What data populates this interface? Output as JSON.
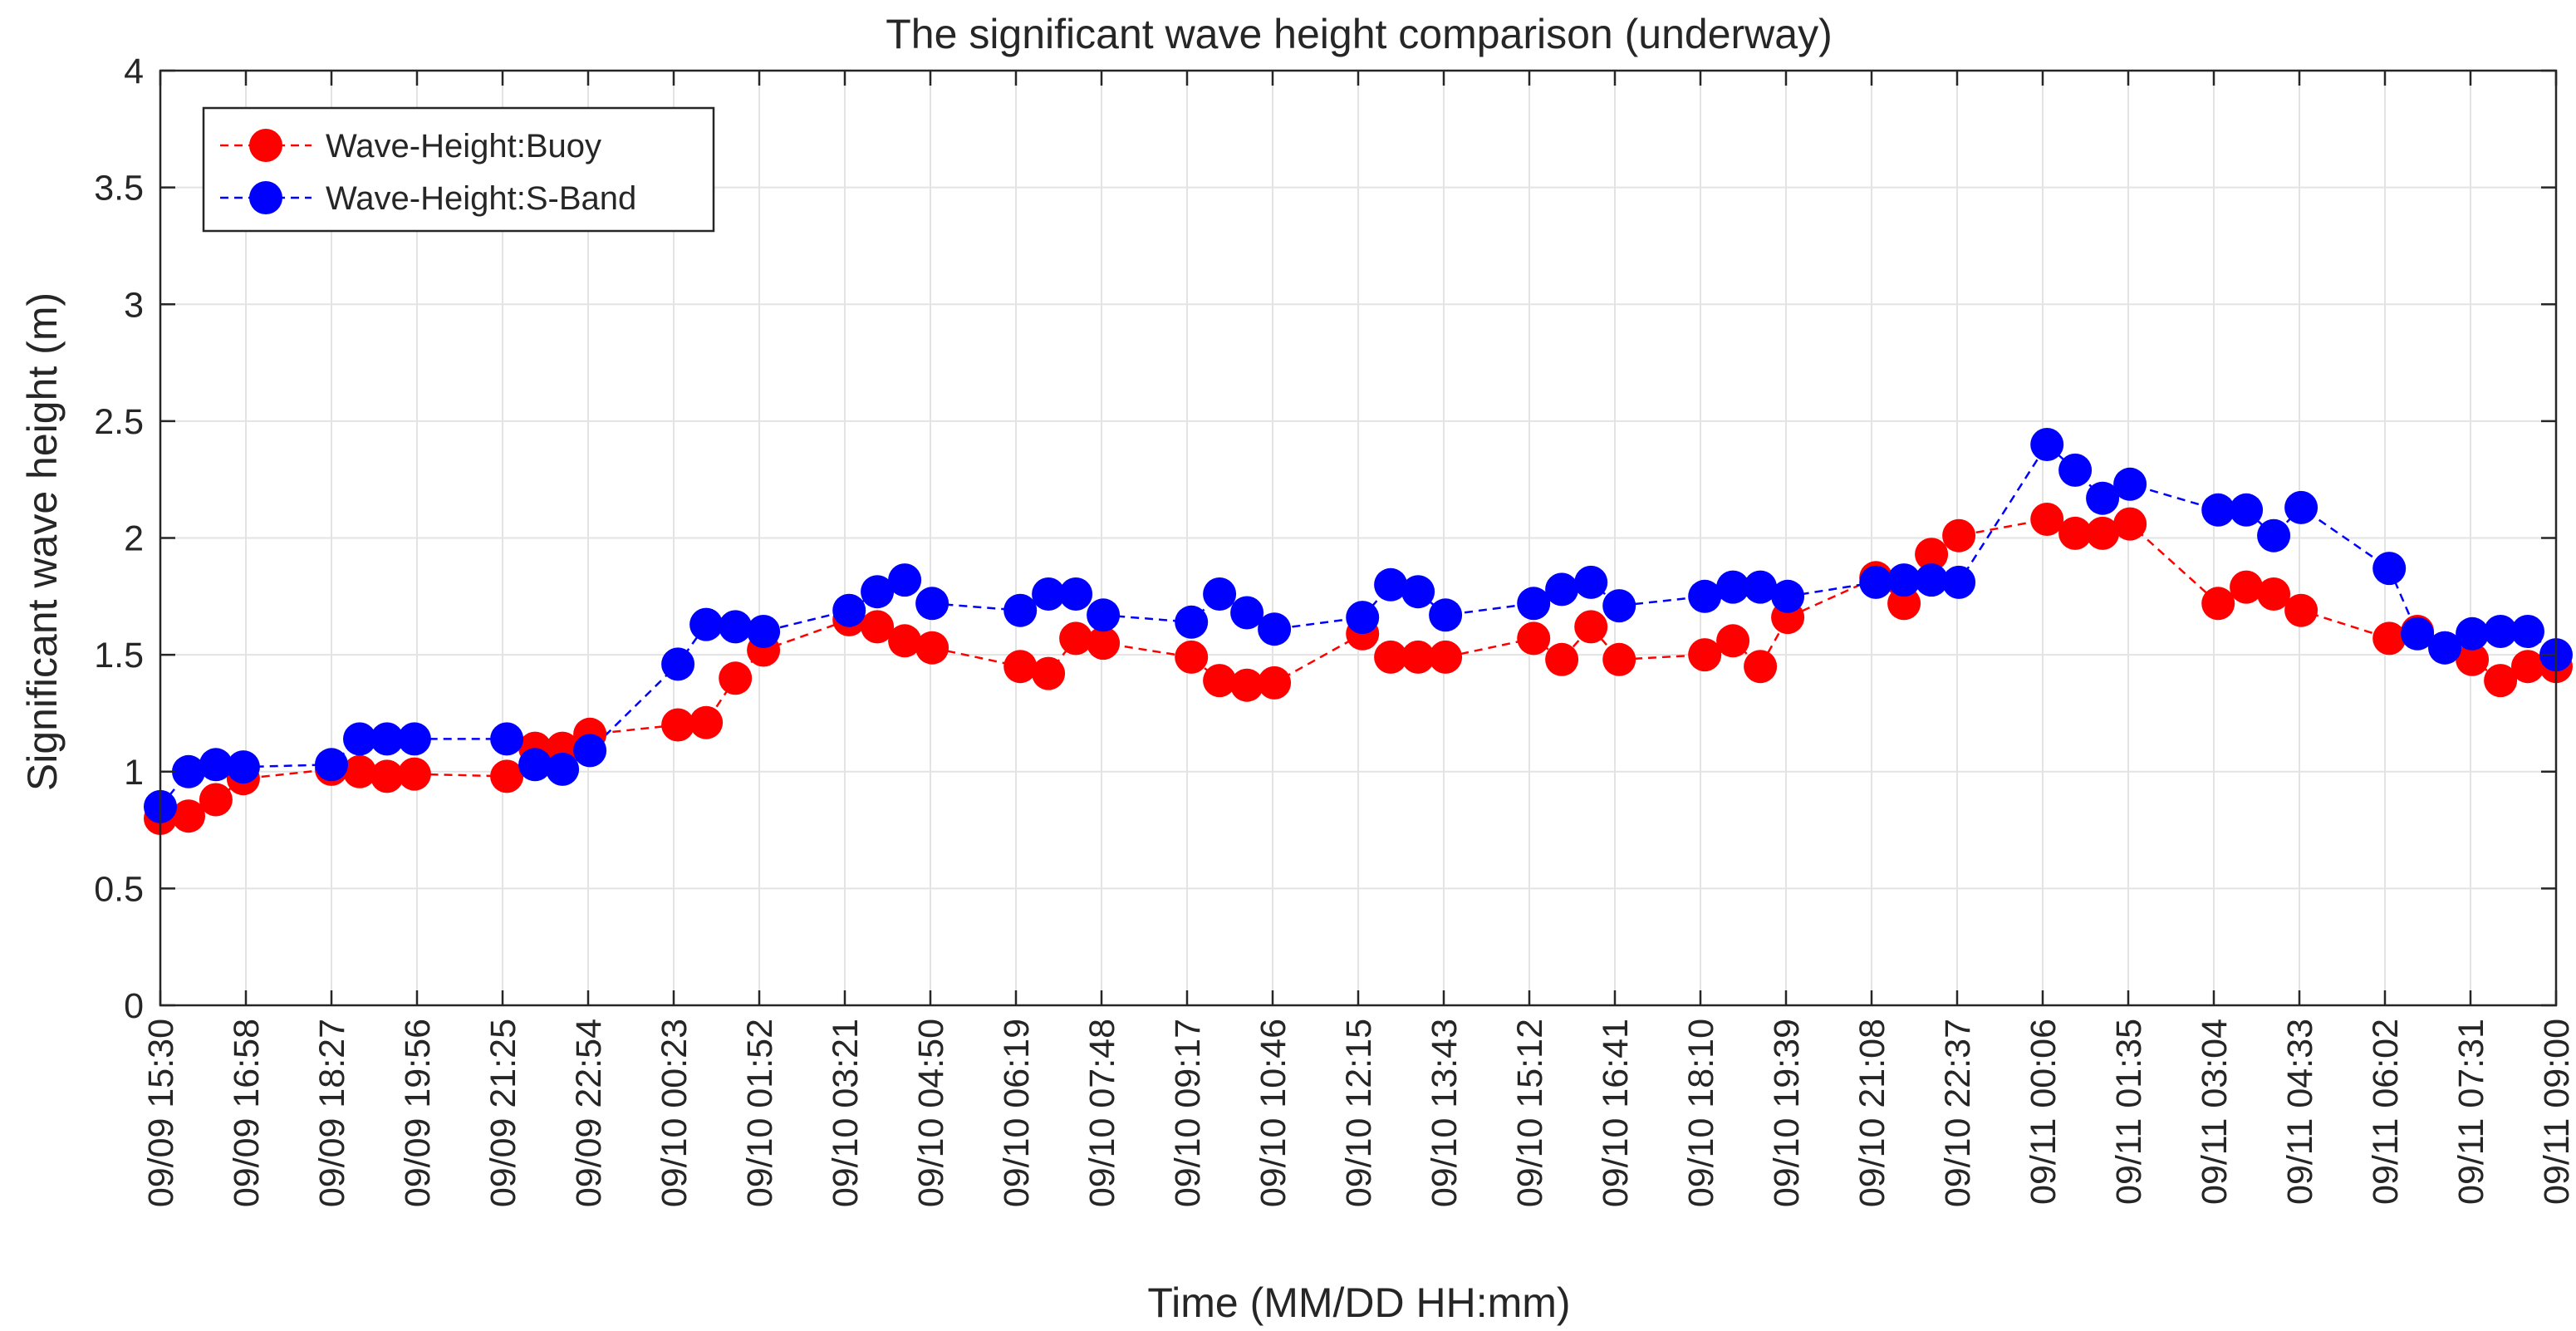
{
  "chart_data": {
    "type": "line",
    "title": "The significant wave height comparison (underway)",
    "xlabel": "Time (MM/DD HH:mm)",
    "ylabel": "Significant wave height (m)",
    "ylim": [
      0,
      4
    ],
    "yticks": [
      "0",
      "0.5",
      "1",
      "1.5",
      "2",
      "2.5",
      "3",
      "3.5",
      "4"
    ],
    "xticks": [
      "09/09 15:30",
      "09/09 16:58",
      "09/09 18:27",
      "09/09 19:56",
      "09/09 21:25",
      "09/09 22:54",
      "09/10 00:23",
      "09/10 01:52",
      "09/10 03:21",
      "09/10 04:50",
      "09/10 06:19",
      "09/10 07:48",
      "09/10 09:17",
      "09/10 10:46",
      "09/10 12:15",
      "09/10 13:43",
      "09/10 15:12",
      "09/10 16:41",
      "09/10 18:10",
      "09/10 19:39",
      "09/10 21:08",
      "09/10 22:37",
      "09/11 00:06",
      "09/11 01:35",
      "09/11 03:04",
      "09/11 04:33",
      "09/11 06:02",
      "09/11 07:31",
      "09/11 09:00"
    ],
    "grid": true,
    "legend_position": "top-left",
    "series": [
      {
        "name": "Wave-Height:Buoy",
        "color": "#ff0000",
        "line_style": "dashed",
        "marker": "circle",
        "x": [
          0,
          0.33,
          0.65,
          0.97,
          2.0,
          2.33,
          2.65,
          2.97,
          4.05,
          4.38,
          4.7,
          5.02,
          6.05,
          6.38,
          6.72,
          7.05,
          8.05,
          8.38,
          8.7,
          9.02,
          10.05,
          10.38,
          10.7,
          11.02,
          12.05,
          12.38,
          12.7,
          13.02,
          14.05,
          14.38,
          14.7,
          15.02,
          16.05,
          16.38,
          16.72,
          17.05,
          18.05,
          18.38,
          18.7,
          19.02,
          20.05,
          20.38,
          20.7,
          21.02,
          22.05,
          22.38,
          22.7,
          23.02,
          24.05,
          24.38,
          24.7,
          25.02,
          26.05,
          26.38,
          26.7,
          27.02,
          27.35,
          27.67,
          28.0
        ],
        "values": [
          0.8,
          0.81,
          0.88,
          0.97,
          1.01,
          1.0,
          0.98,
          0.99,
          0.98,
          1.1,
          1.1,
          1.16,
          1.2,
          1.21,
          1.4,
          1.52,
          1.65,
          1.62,
          1.56,
          1.53,
          1.45,
          1.42,
          1.57,
          1.55,
          1.49,
          1.39,
          1.37,
          1.38,
          1.59,
          1.49,
          1.49,
          1.49,
          1.57,
          1.48,
          1.62,
          1.48,
          1.5,
          1.56,
          1.45,
          1.66,
          1.83,
          1.72,
          1.93,
          2.01,
          2.08,
          2.02,
          2.02,
          2.06,
          1.72,
          1.79,
          1.76,
          1.69,
          1.57,
          1.6,
          1.53,
          1.48,
          1.39,
          1.45,
          1.45
        ]
      },
      {
        "name": "Wave-Height:S-Band",
        "color": "#0000ff",
        "line_style": "dashed",
        "marker": "circle",
        "x": [
          0,
          0.33,
          0.65,
          0.97,
          2.0,
          2.33,
          2.65,
          2.97,
          4.05,
          4.38,
          4.7,
          5.02,
          6.05,
          6.38,
          6.72,
          7.05,
          8.05,
          8.38,
          8.7,
          9.02,
          10.05,
          10.38,
          10.7,
          11.02,
          12.05,
          12.38,
          12.7,
          13.02,
          14.05,
          14.38,
          14.7,
          15.02,
          16.05,
          16.38,
          16.72,
          17.05,
          18.05,
          18.38,
          18.7,
          19.02,
          20.05,
          20.38,
          20.7,
          21.02,
          22.05,
          22.38,
          22.7,
          23.02,
          24.05,
          24.38,
          24.7,
          25.02,
          26.05,
          26.38,
          26.7,
          27.02,
          27.35,
          27.67,
          28.0
        ],
        "values": [
          0.85,
          1.0,
          1.03,
          1.02,
          1.03,
          1.14,
          1.14,
          1.14,
          1.14,
          1.03,
          1.01,
          1.09,
          1.46,
          1.63,
          1.62,
          1.6,
          1.69,
          1.77,
          1.82,
          1.72,
          1.69,
          1.76,
          1.76,
          1.67,
          1.64,
          1.76,
          1.68,
          1.61,
          1.66,
          1.8,
          1.77,
          1.67,
          1.72,
          1.78,
          1.81,
          1.71,
          1.75,
          1.79,
          1.79,
          1.75,
          1.81,
          1.82,
          1.82,
          1.81,
          2.4,
          2.29,
          2.17,
          2.23,
          2.12,
          2.12,
          2.01,
          2.13,
          1.87,
          1.59,
          1.53,
          1.59,
          1.6,
          1.6,
          1.5
        ]
      }
    ]
  }
}
